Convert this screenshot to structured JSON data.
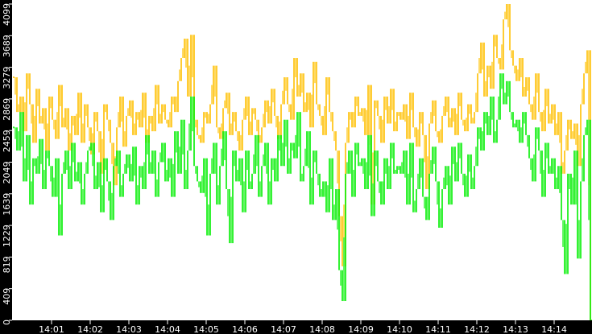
{
  "chart_data": {
    "type": "line",
    "title": "",
    "xlabel": "",
    "ylabel": "",
    "x_range": [
      "14:00:00",
      "14:15:00"
    ],
    "x_interval_seconds": 5,
    "ylim": [
      0,
      4099
    ],
    "grid": false,
    "legend": "none",
    "y_ticks": [
      "0",
      "409",
      "819",
      "1229",
      "1639",
      "2049",
      "2459",
      "2869",
      "3279",
      "3689",
      "4099"
    ],
    "x_ticks": [
      "14:01",
      "14:02",
      "14:03",
      "14:04",
      "14:05",
      "14:06",
      "14:07",
      "14:08",
      "14:09",
      "14:10",
      "14:11",
      "14:12",
      "14:13",
      "14:14"
    ],
    "colors": {
      "background": "#ffffff",
      "axis_band": "#000000",
      "axis_text": "#ffffff"
    },
    "series": [
      {
        "color": "#ffc000",
        "values": [
          3150,
          2700,
          2900,
          2450,
          3200,
          2800,
          2300,
          3000,
          2550,
          2750,
          2200,
          2900,
          2600,
          2350,
          3050,
          2500,
          2750,
          2200,
          2650,
          2400,
          2950,
          2300,
          2800,
          2500,
          2150,
          2700,
          2450,
          1900,
          2800,
          2600,
          2300,
          1750,
          2500,
          2900,
          2250,
          2650,
          2850,
          2400,
          2700,
          2500,
          2950,
          2300,
          2650,
          2450,
          3050,
          2550,
          2800,
          2600,
          2500,
          2900,
          2700,
          3100,
          3400,
          3650,
          2900,
          3700,
          2600,
          2400,
          2300,
          2700,
          2550,
          2800,
          3300,
          2500,
          2350,
          2750,
          2950,
          2400,
          2700,
          2450,
          2200,
          2600,
          2900,
          2400,
          2750,
          2600,
          2300,
          2500,
          2850,
          2550,
          3000,
          2650,
          2350,
          2800,
          3150,
          2800,
          2600,
          3400,
          2900,
          3200,
          2700,
          2950,
          2500,
          3350,
          2800,
          2650,
          2400,
          3150,
          2700,
          2450,
          2200,
          1350,
          700,
          2300,
          2700,
          2500,
          2900,
          2650,
          2750,
          2400,
          3050,
          1500,
          2850,
          2650,
          2300,
          2900,
          2550,
          3000,
          2450,
          2700,
          2600,
          2800,
          2350,
          2950,
          2500,
          2250,
          2700,
          2400,
          1700,
          2550,
          2850,
          2450,
          2300,
          2650,
          2900,
          2500,
          2750,
          2400,
          2950,
          2600,
          2450,
          2800,
          2550,
          2700,
          3200,
          3600,
          2900,
          3300,
          3000,
          3700,
          3400,
          3250,
          3900,
          4099,
          3500,
          3300,
          3100,
          3400,
          2900,
          3150,
          2800,
          2600,
          3200,
          2700,
          2450,
          3000,
          2550,
          2800,
          2400,
          2700,
          1900,
          2200,
          2600,
          2350,
          2550,
          2000,
          2800,
          3200,
          3500,
          0
        ]
      },
      {
        "color": "#00ee00",
        "values": [
          2500,
          2200,
          2700,
          1800,
          2400,
          1500,
          2100,
          1900,
          2350,
          1700,
          2200,
          2000,
          1600,
          2100,
          1100,
          1900,
          2200,
          1700,
          2300,
          1800,
          2050,
          1500,
          1900,
          2200,
          2300,
          1700,
          2050,
          1400,
          2100,
          1800,
          1300,
          2000,
          2200,
          1600,
          1900,
          2150,
          1800,
          2250,
          1500,
          2000,
          1700,
          2400,
          1900,
          2200,
          1600,
          2050,
          2300,
          1800,
          2100,
          1600,
          2450,
          1900,
          2600,
          1700,
          2200,
          2900,
          2000,
          1800,
          1650,
          2100,
          1100,
          1900,
          2300,
          1500,
          2000,
          2450,
          1700,
          1000,
          2200,
          1800,
          2100,
          1400,
          2200,
          1700,
          1900,
          2400,
          1600,
          2000,
          2300,
          1500,
          2100,
          1800,
          2400,
          2000,
          2600,
          1900,
          2300,
          2100,
          2700,
          1800,
          2000,
          2450,
          1500,
          2200,
          1900,
          1600,
          1800,
          1400,
          2100,
          1300,
          1700,
          650,
          250,
          1900,
          2200,
          1600,
          2300,
          2000,
          2100,
          1700,
          2400,
          1350,
          2200,
          1800,
          1500,
          2100,
          1700,
          2300,
          1900,
          2000,
          1900,
          2200,
          1500,
          2300,
          1400,
          1700,
          2100,
          1600,
          1300,
          1900,
          2250,
          1800,
          1200,
          1700,
          2000,
          1500,
          2250,
          1800,
          2300,
          1900,
          1600,
          2150,
          1700,
          2000,
          2500,
          2200,
          2700,
          2400,
          2900,
          2300,
          2600,
          3200,
          2800,
          3100,
          2700,
          2500,
          2600,
          2300,
          2700,
          2400,
          2100,
          1800,
          2500,
          2200,
          1600,
          2300,
          1900,
          2100,
          1700,
          2000,
          1300,
          600,
          1900,
          1500,
          2200,
          800,
          1800,
          2400,
          2600,
          0
        ]
      }
    ]
  }
}
